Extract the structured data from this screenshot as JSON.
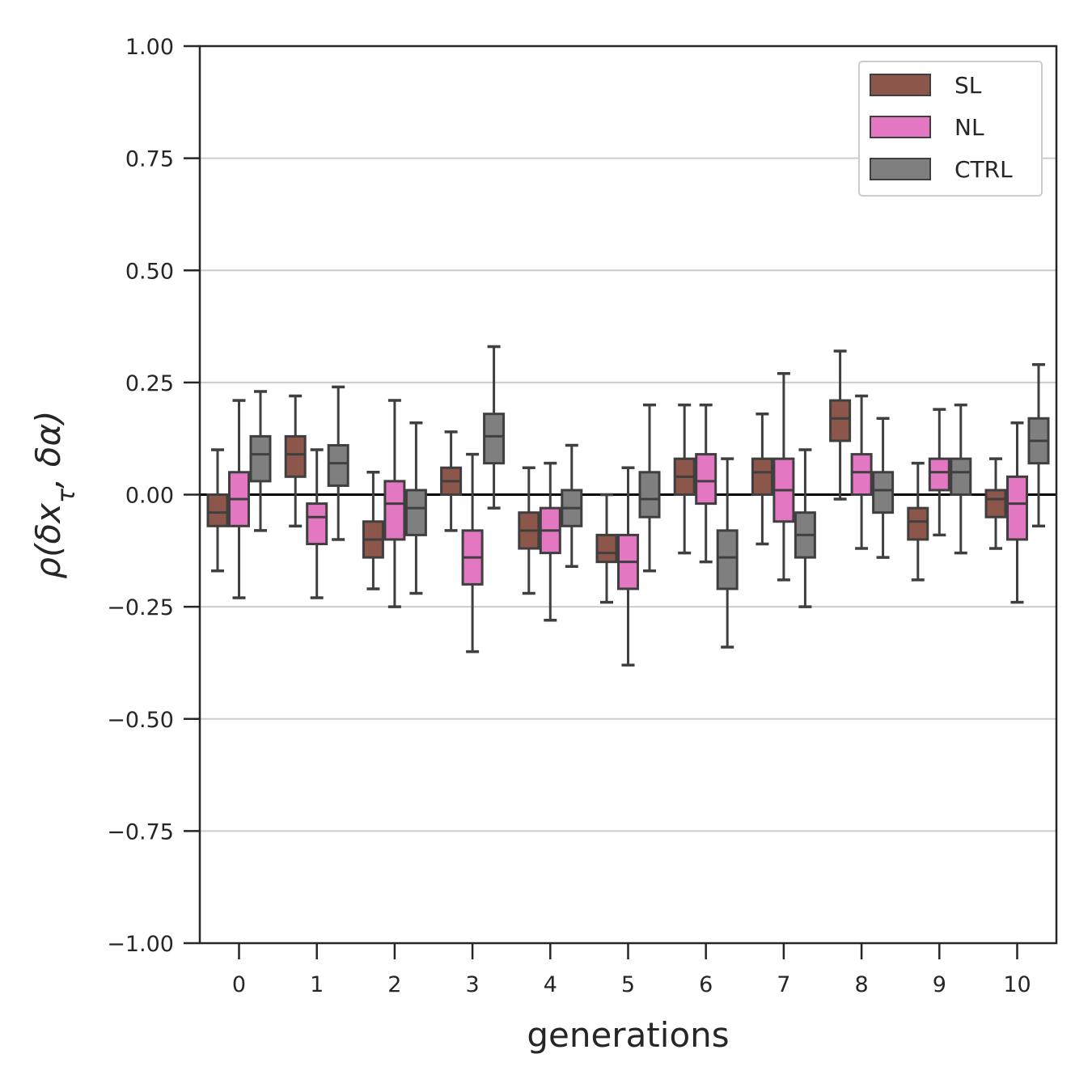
{
  "chart_data": {
    "type": "box",
    "xlabel": "generations",
    "ylabel": "ρ(δx_τ, δα)",
    "categories": [
      "0",
      "1",
      "2",
      "3",
      "4",
      "5",
      "6",
      "7",
      "8",
      "9",
      "10"
    ],
    "y_ticks": [
      "1.00",
      "0.75",
      "0.50",
      "0.25",
      "0.00",
      "−0.25",
      "−0.50",
      "−0.75",
      "−1.00"
    ],
    "ylim": [
      -1.0,
      1.0
    ],
    "grid": "horizontal",
    "reference_line": 0.0,
    "legend_position": "top-right",
    "series": [
      {
        "name": "SL",
        "color": "#8c564b",
        "boxes": [
          {
            "whisker_low": -0.17,
            "q1": -0.07,
            "median": -0.04,
            "q3": -0.0,
            "whisker_high": 0.1
          },
          {
            "whisker_low": -0.07,
            "q1": 0.04,
            "median": 0.09,
            "q3": 0.13,
            "whisker_high": 0.22
          },
          {
            "whisker_low": -0.21,
            "q1": -0.14,
            "median": -0.1,
            "q3": -0.06,
            "whisker_high": 0.05
          },
          {
            "whisker_low": -0.08,
            "q1": 0.0,
            "median": 0.03,
            "q3": 0.06,
            "whisker_high": 0.14
          },
          {
            "whisker_low": -0.22,
            "q1": -0.12,
            "median": -0.08,
            "q3": -0.04,
            "whisker_high": 0.06
          },
          {
            "whisker_low": -0.24,
            "q1": -0.15,
            "median": -0.13,
            "q3": -0.09,
            "whisker_high": 0.0
          },
          {
            "whisker_low": -0.13,
            "q1": -0.0,
            "median": 0.04,
            "q3": 0.08,
            "whisker_high": 0.2
          },
          {
            "whisker_low": -0.11,
            "q1": 0.0,
            "median": 0.05,
            "q3": 0.08,
            "whisker_high": 0.18
          },
          {
            "whisker_low": -0.01,
            "q1": 0.12,
            "median": 0.17,
            "q3": 0.21,
            "whisker_high": 0.32
          },
          {
            "whisker_low": -0.19,
            "q1": -0.1,
            "median": -0.06,
            "q3": -0.03,
            "whisker_high": 0.07
          },
          {
            "whisker_low": -0.12,
            "q1": -0.05,
            "median": -0.01,
            "q3": 0.01,
            "whisker_high": 0.08
          }
        ]
      },
      {
        "name": "NL",
        "color": "#e377c2",
        "boxes": [
          {
            "whisker_low": -0.23,
            "q1": -0.07,
            "median": -0.01,
            "q3": 0.05,
            "whisker_high": 0.21
          },
          {
            "whisker_low": -0.23,
            "q1": -0.11,
            "median": -0.05,
            "q3": -0.02,
            "whisker_high": 0.1
          },
          {
            "whisker_low": -0.25,
            "q1": -0.1,
            "median": -0.02,
            "q3": 0.03,
            "whisker_high": 0.21
          },
          {
            "whisker_low": -0.35,
            "q1": -0.2,
            "median": -0.14,
            "q3": -0.08,
            "whisker_high": 0.09
          },
          {
            "whisker_low": -0.28,
            "q1": -0.13,
            "median": -0.08,
            "q3": -0.03,
            "whisker_high": 0.07
          },
          {
            "whisker_low": -0.38,
            "q1": -0.21,
            "median": -0.15,
            "q3": -0.09,
            "whisker_high": 0.06
          },
          {
            "whisker_low": -0.15,
            "q1": -0.02,
            "median": 0.03,
            "q3": 0.09,
            "whisker_high": 0.2
          },
          {
            "whisker_low": -0.19,
            "q1": -0.06,
            "median": 0.01,
            "q3": 0.08,
            "whisker_high": 0.27
          },
          {
            "whisker_low": -0.12,
            "q1": 0.0,
            "median": 0.05,
            "q3": 0.09,
            "whisker_high": 0.22
          },
          {
            "whisker_low": -0.09,
            "q1": 0.01,
            "median": 0.05,
            "q3": 0.08,
            "whisker_high": 0.19
          },
          {
            "whisker_low": -0.24,
            "q1": -0.1,
            "median": -0.02,
            "q3": 0.04,
            "whisker_high": 0.16
          }
        ]
      },
      {
        "name": "CTRL",
        "color": "#7f7f7f",
        "boxes": [
          {
            "whisker_low": -0.08,
            "q1": 0.03,
            "median": 0.09,
            "q3": 0.13,
            "whisker_high": 0.23
          },
          {
            "whisker_low": -0.1,
            "q1": 0.02,
            "median": 0.07,
            "q3": 0.11,
            "whisker_high": 0.24
          },
          {
            "whisker_low": -0.22,
            "q1": -0.09,
            "median": -0.03,
            "q3": 0.01,
            "whisker_high": 0.16
          },
          {
            "whisker_low": -0.03,
            "q1": 0.07,
            "median": 0.13,
            "q3": 0.18,
            "whisker_high": 0.33
          },
          {
            "whisker_low": -0.16,
            "q1": -0.07,
            "median": -0.03,
            "q3": 0.01,
            "whisker_high": 0.11
          },
          {
            "whisker_low": -0.17,
            "q1": -0.05,
            "median": -0.01,
            "q3": 0.05,
            "whisker_high": 0.2
          },
          {
            "whisker_low": -0.34,
            "q1": -0.21,
            "median": -0.14,
            "q3": -0.08,
            "whisker_high": 0.08
          },
          {
            "whisker_low": -0.25,
            "q1": -0.14,
            "median": -0.09,
            "q3": -0.04,
            "whisker_high": 0.1
          },
          {
            "whisker_low": -0.14,
            "q1": -0.04,
            "median": 0.01,
            "q3": 0.05,
            "whisker_high": 0.17
          },
          {
            "whisker_low": -0.13,
            "q1": 0.0,
            "median": 0.05,
            "q3": 0.08,
            "whisker_high": 0.2
          },
          {
            "whisker_low": -0.07,
            "q1": 0.07,
            "median": 0.12,
            "q3": 0.17,
            "whisker_high": 0.29
          }
        ]
      }
    ]
  }
}
